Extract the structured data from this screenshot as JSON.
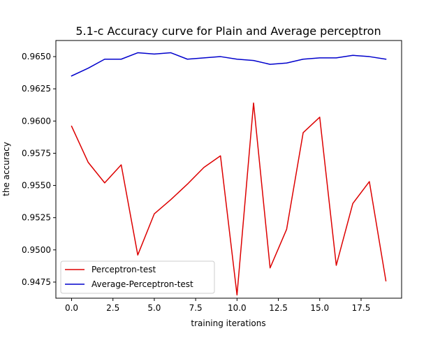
{
  "chart_data": {
    "type": "line",
    "title": "5.1-c Accuracy curve for Plain and Average perceptron",
    "xlabel": "training iterations",
    "ylabel": "the accuracy",
    "xlim": [
      -0.95,
      19.95
    ],
    "ylim": [
      0.94625,
      0.96625
    ],
    "x_ticks": [
      0.0,
      2.5,
      5.0,
      7.5,
      10.0,
      12.5,
      15.0,
      17.5
    ],
    "x_tick_labels": [
      "0.0",
      "2.5",
      "5.0",
      "7.5",
      "10.0",
      "12.5",
      "15.0",
      "17.5"
    ],
    "y_ticks": [
      0.9475,
      0.95,
      0.9525,
      0.955,
      0.9575,
      0.96,
      0.9625,
      0.965
    ],
    "y_tick_labels": [
      "0.9475",
      "0.9500",
      "0.9525",
      "0.9550",
      "0.9575",
      "0.9600",
      "0.9625",
      "0.9650"
    ],
    "grid": false,
    "legend_position": "lower-left",
    "x": [
      0,
      1,
      2,
      3,
      4,
      5,
      6,
      7,
      8,
      9,
      10,
      11,
      12,
      13,
      14,
      15,
      16,
      17,
      18,
      19
    ],
    "series": [
      {
        "name": "Perceptron-test",
        "color": "#dd0000",
        "values": [
          0.9596,
          0.9568,
          0.9552,
          0.9566,
          0.9496,
          0.9528,
          0.9539,
          0.9551,
          0.9564,
          0.9573,
          0.9465,
          0.9614,
          0.9486,
          0.9516,
          0.9591,
          0.9603,
          0.9488,
          0.9536,
          0.9553,
          0.9476
        ]
      },
      {
        "name": "Average-Perceptron-test",
        "color": "#0000cc",
        "values": [
          0.9635,
          0.9641,
          0.9648,
          0.9648,
          0.9653,
          0.9652,
          0.9653,
          0.9648,
          0.9649,
          0.965,
          0.9648,
          0.9647,
          0.9644,
          0.9645,
          0.9648,
          0.9649,
          0.9649,
          0.9651,
          0.965,
          0.9648
        ]
      }
    ]
  }
}
